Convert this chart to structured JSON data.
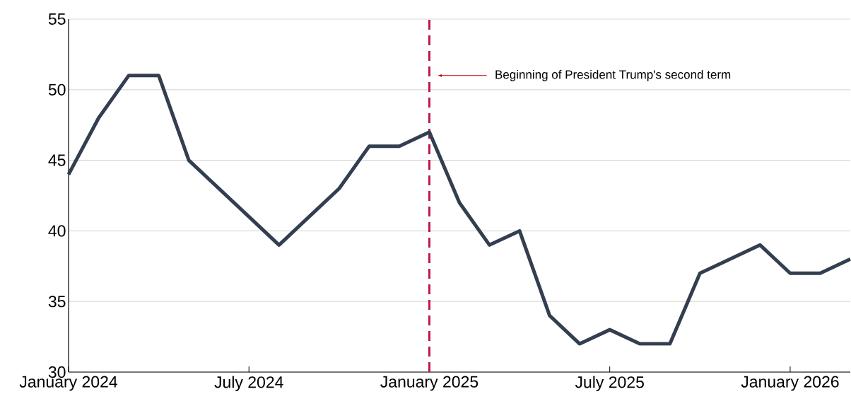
{
  "chart_data": {
    "type": "line",
    "x": [
      "2024-01",
      "2024-02",
      "2024-03",
      "2024-04",
      "2024-05",
      "2024-06",
      "2024-07",
      "2024-08",
      "2024-09",
      "2024-10",
      "2024-11",
      "2024-12",
      "2025-01",
      "2025-02",
      "2025-03",
      "2025-04",
      "2025-05",
      "2025-06",
      "2025-07",
      "2025-08",
      "2025-09",
      "2025-10",
      "2025-11",
      "2025-12",
      "2026-01",
      "2026-02",
      "2026-03"
    ],
    "values": [
      44,
      48,
      51,
      51,
      45,
      43,
      41,
      39,
      41,
      43,
      46,
      46,
      47,
      42,
      39,
      40,
      34,
      32,
      33,
      32,
      32,
      37,
      38,
      39,
      37,
      37,
      38
    ],
    "color": "#333f50",
    "xlim": [
      "2024-01",
      "2026-03"
    ],
    "ylim": [
      30,
      55
    ],
    "xticks": [
      {
        "value": "2024-01",
        "label": "January 2024"
      },
      {
        "value": "2024-07",
        "label": "July 2024"
      },
      {
        "value": "2025-01",
        "label": "January 2025"
      },
      {
        "value": "2025-07",
        "label": "July 2025"
      },
      {
        "value": "2026-01",
        "label": "January 2026"
      }
    ],
    "yticks": [
      30,
      35,
      40,
      45,
      50,
      55
    ],
    "grid": "y",
    "ref_lines": [
      {
        "axis": "x",
        "value": "2025-01",
        "color": "#c0174c",
        "line_style": "dashed"
      }
    ],
    "annotations": [
      "Beginning of President Trump's second term"
    ]
  }
}
